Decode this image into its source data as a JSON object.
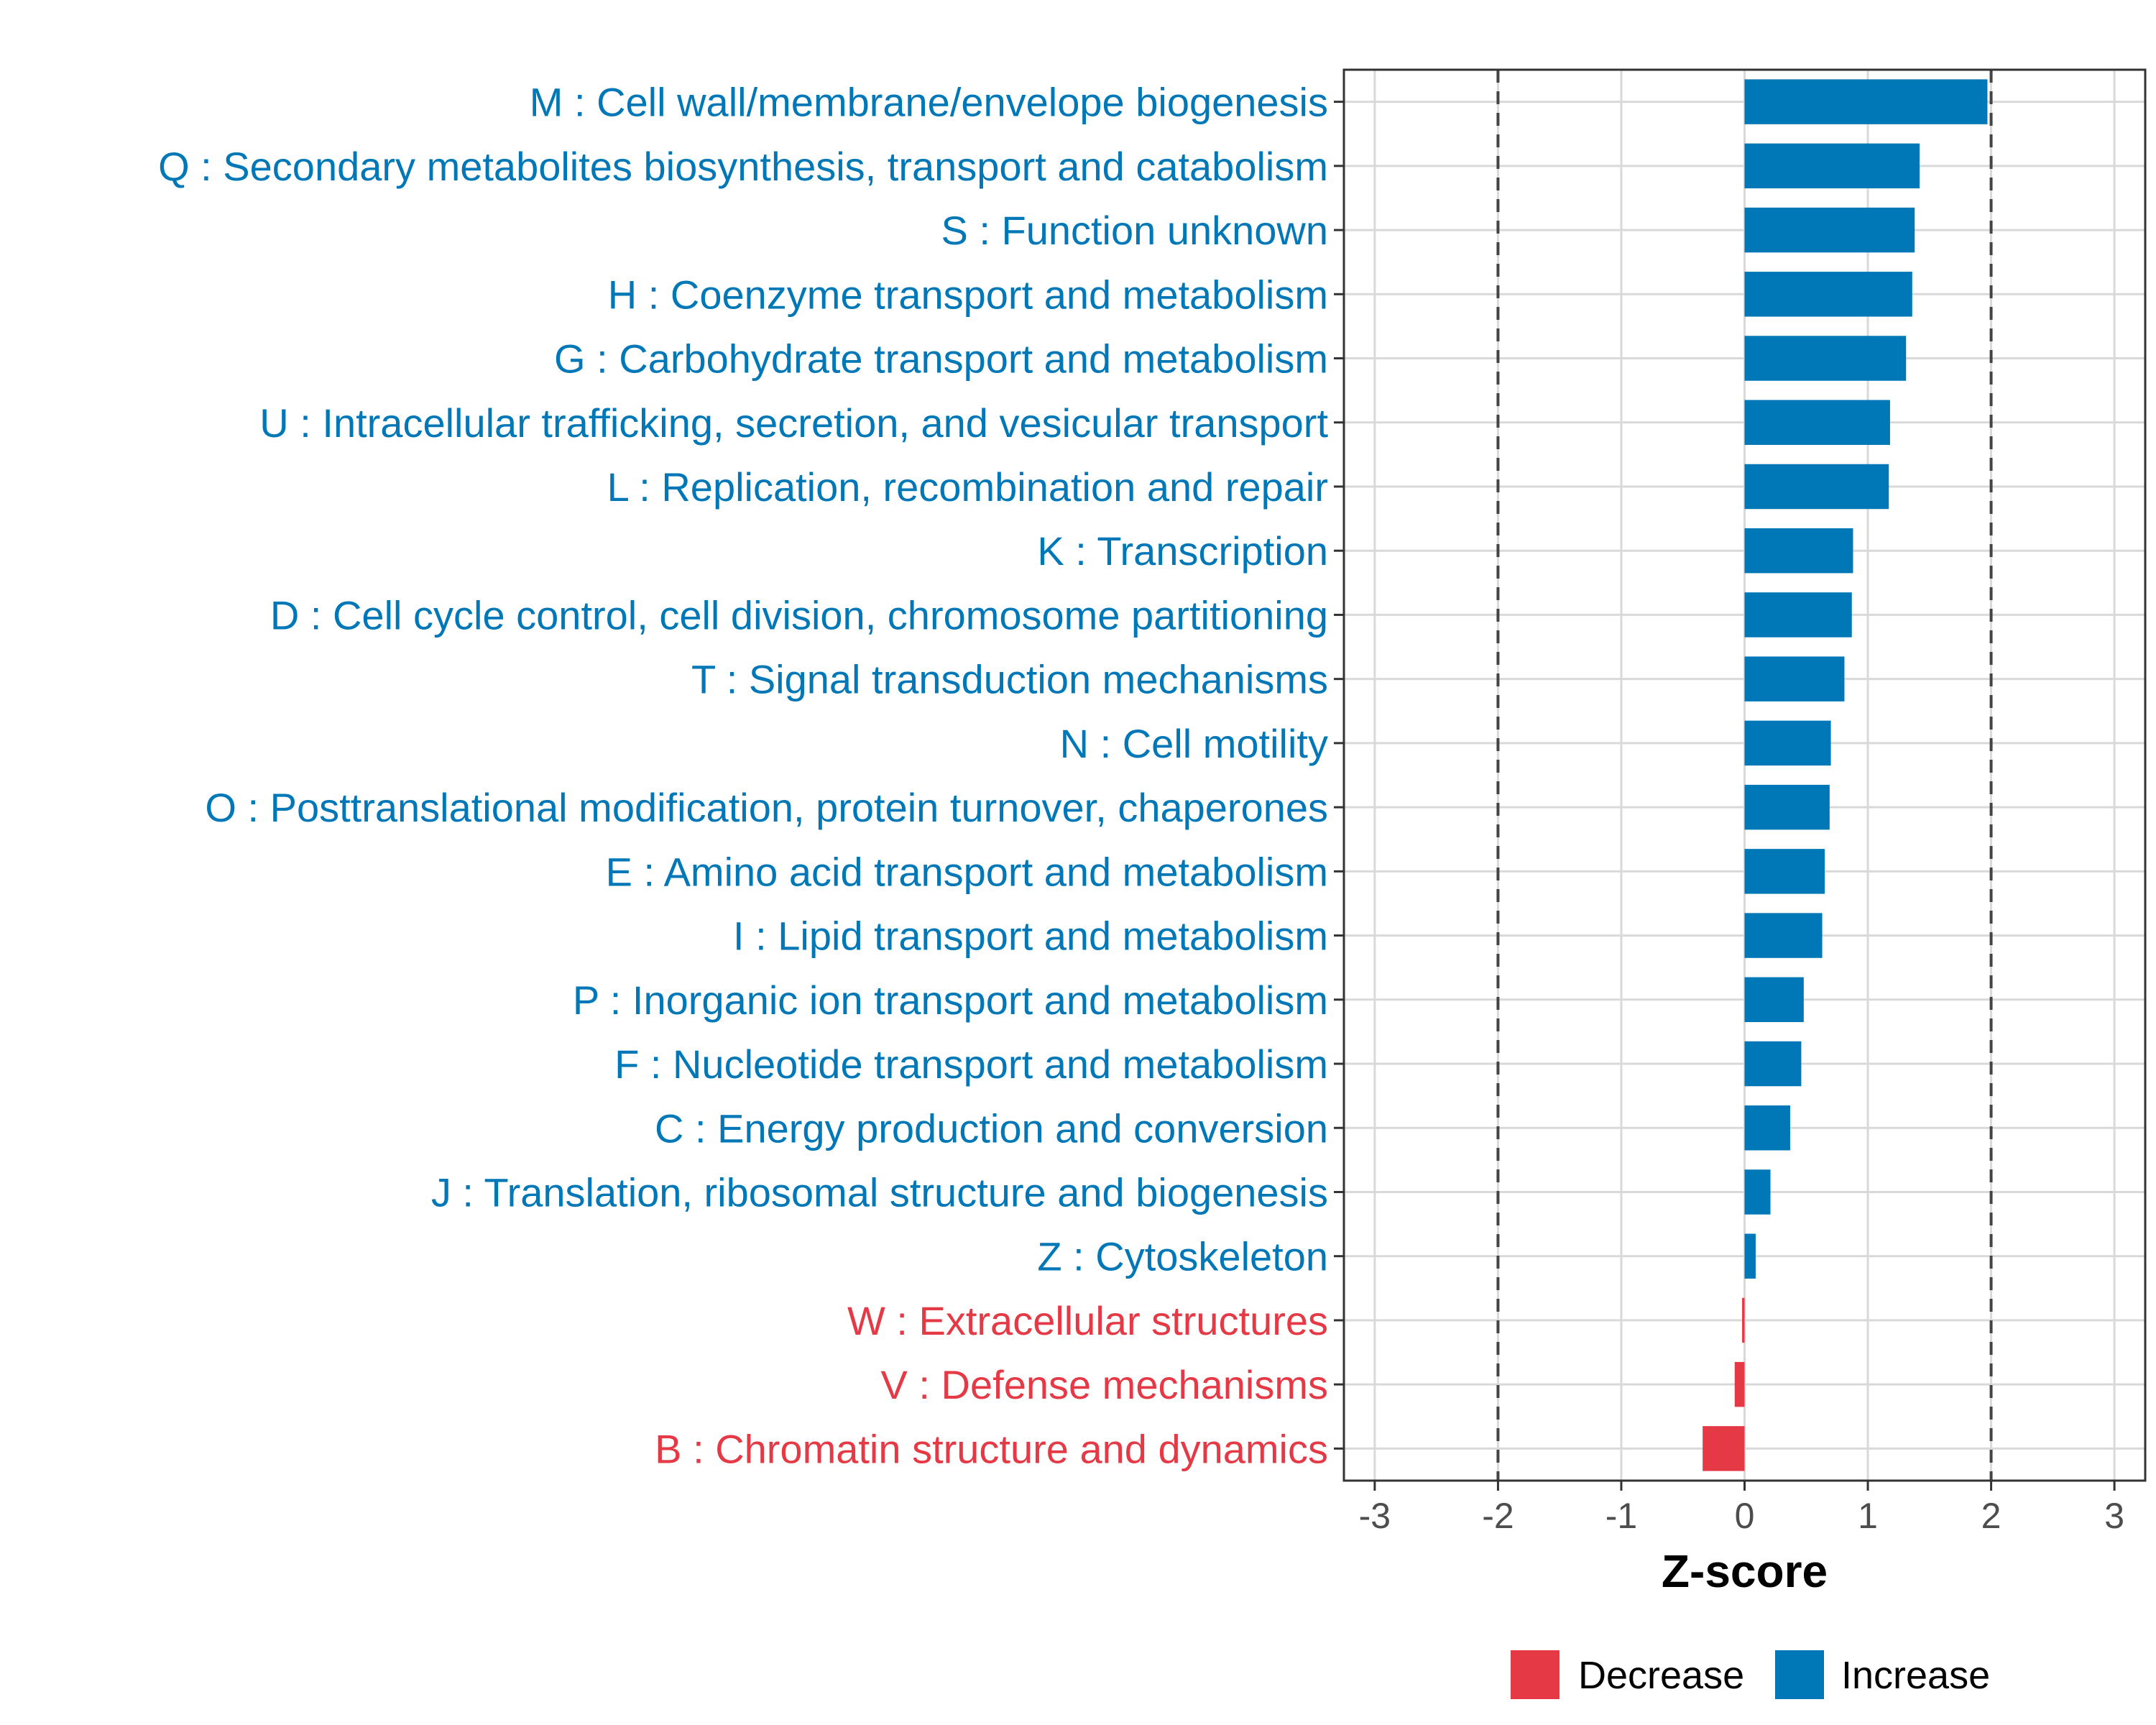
{
  "chart_data": {
    "type": "bar",
    "orientation": "horizontal",
    "xlabel": "Z-score",
    "ylabel": "",
    "xlim": [
      -3.25,
      3.25
    ],
    "x_ticks": [
      -3,
      -2,
      -1,
      0,
      1,
      2,
      3
    ],
    "x_tick_labels": [
      "-3",
      "-2",
      "-1",
      "0",
      "1",
      "2",
      "3"
    ],
    "reference_lines": [
      -2,
      2
    ],
    "grid": true,
    "legend_position": "bottom",
    "legend": [
      {
        "name": "Decrease",
        "color": "#e63946"
      },
      {
        "name": "Increase",
        "color": "#0077b6"
      }
    ],
    "categories": [
      "M : Cell wall/membrane/envelope biogenesis",
      "Q : Secondary metabolites biosynthesis, transport and catabolism",
      "S : Function unknown",
      "H : Coenzyme transport and metabolism",
      "G : Carbohydrate transport and metabolism",
      "U : Intracellular trafficking, secretion, and vesicular transport",
      "L : Replication, recombination and repair",
      "K : Transcription",
      "D : Cell cycle control, cell division, chromosome partitioning",
      "T : Signal transduction mechanisms",
      "N : Cell motility",
      "O : Posttranslational modification, protein turnover, chaperones",
      "E : Amino acid transport and metabolism",
      "I : Lipid transport and metabolism",
      "P : Inorganic ion transport and metabolism",
      "F : Nucleotide transport and metabolism",
      "C : Energy production and conversion",
      "J : Translation, ribosomal structure and biogenesis",
      "Z : Cytoskeleton",
      "W : Extracellular structures",
      "V : Defense mechanisms",
      "B : Chromatin structure and dynamics"
    ],
    "values": [
      1.97,
      1.42,
      1.38,
      1.36,
      1.31,
      1.18,
      1.17,
      0.88,
      0.87,
      0.81,
      0.7,
      0.69,
      0.65,
      0.63,
      0.48,
      0.46,
      0.37,
      0.21,
      0.09,
      -0.02,
      -0.08,
      -0.34
    ]
  }
}
